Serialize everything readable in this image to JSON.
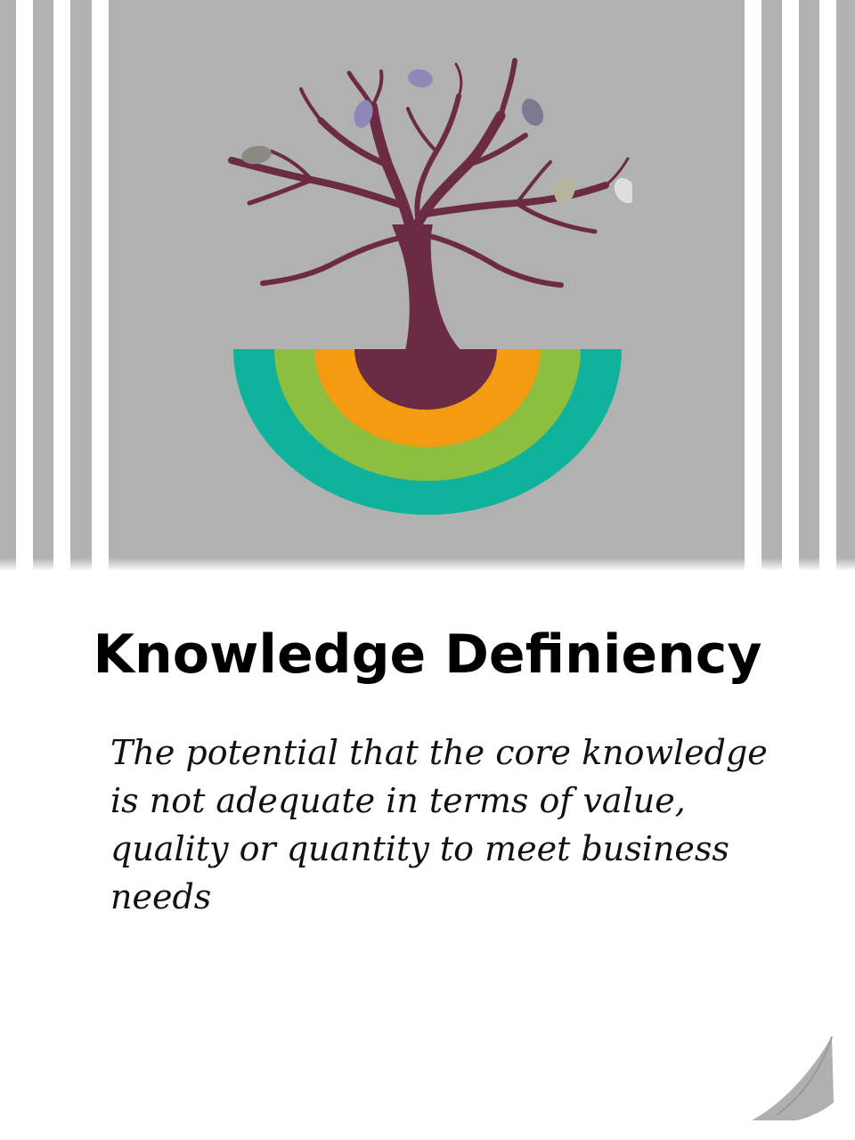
{
  "card": {
    "title": "Knowledge Definiency",
    "description": "The potential that the core knowledge is not adequate in terms of value, quality or quantity to meet business needs"
  },
  "illustration": {
    "subject": "tree-with-rainbow-roots-icon",
    "colors": {
      "background": "#b1b1b1",
      "trunk": "#6b2b43",
      "ring_orange": "#f39c12",
      "ring_green": "#8cbf3f",
      "ring_teal": "#0fb39b"
    }
  },
  "decoration": {
    "page_curl_icon": "page-curl-icon"
  }
}
